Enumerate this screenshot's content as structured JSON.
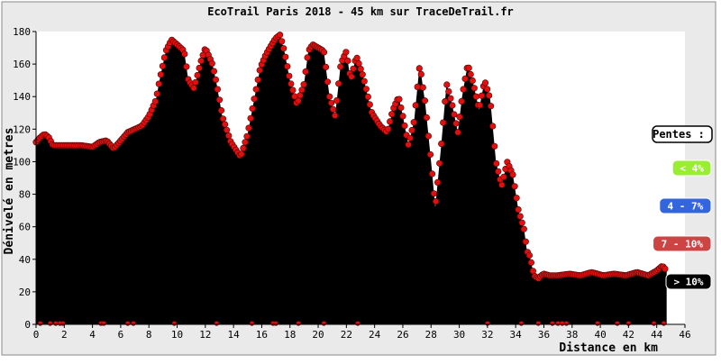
{
  "chart_data": {
    "type": "area",
    "title": "EcoTrail Paris 2018 - 45 km sur TraceDeTrail.fr",
    "xlabel": "Distance en km",
    "ylabel": "Dénivelé en metres",
    "xlim": [
      0,
      46
    ],
    "ylim": [
      0,
      180
    ],
    "x_ticks": [
      "0",
      "2",
      "4",
      "6",
      "8",
      "10",
      "12",
      "14",
      "16",
      "18",
      "20",
      "22",
      "24",
      "26",
      "28",
      "30",
      "32",
      "34",
      "36",
      "38",
      "40",
      "42",
      "44",
      "46"
    ],
    "y_ticks": [
      "0",
      "20",
      "40",
      "60",
      "80",
      "100",
      "120",
      "140",
      "160",
      "180"
    ],
    "grid": false,
    "fill_color": "#000000",
    "point_color": "#e01010",
    "profile": {
      "x": [
        0,
        0.3,
        0.6,
        0.9,
        1.2,
        1.8,
        2.5,
        3.2,
        4.0,
        4.5,
        5.0,
        5.5,
        6.0,
        6.5,
        7.0,
        7.5,
        8.0,
        8.5,
        8.8,
        9.2,
        9.6,
        10.0,
        10.5,
        10.8,
        11.2,
        11.7,
        12.0,
        12.5,
        12.8,
        13.2,
        13.8,
        14.5,
        15.0,
        15.5,
        15.9,
        16.3,
        16.7,
        17.0,
        17.3,
        17.6,
        18.0,
        18.5,
        19.0,
        19.3,
        19.6,
        20.0,
        20.4,
        20.8,
        21.2,
        21.6,
        22.0,
        22.3,
        22.7,
        23.2,
        23.8,
        24.4,
        24.9,
        25.3,
        25.7,
        26.0,
        26.4,
        26.8,
        27.2,
        27.6,
        28.0,
        28.3,
        28.7,
        29.1,
        29.5,
        29.9,
        30.2,
        30.6,
        31.0,
        31.4,
        31.8,
        32.2,
        32.6,
        33.0,
        33.4,
        33.8,
        34.2,
        34.6,
        34.8,
        35.0,
        35.3,
        35.6,
        35.8,
        36.0,
        36.4,
        37.0,
        37.8,
        38.6,
        39.4,
        40.2,
        41.0,
        41.8,
        42.6,
        43.4,
        44.0,
        44.4,
        44.7
      ],
      "y": [
        112,
        115,
        117,
        115,
        110,
        110,
        110,
        110,
        109,
        112,
        113,
        108,
        113,
        118,
        120,
        122,
        128,
        138,
        152,
        168,
        175,
        172,
        168,
        150,
        145,
        162,
        170,
        160,
        148,
        128,
        112,
        103,
        117,
        140,
        158,
        166,
        172,
        176,
        178,
        168,
        150,
        135,
        148,
        168,
        172,
        170,
        168,
        140,
        128,
        160,
        168,
        150,
        165,
        152,
        130,
        122,
        118,
        132,
        140,
        128,
        110,
        125,
        160,
        135,
        100,
        72,
        108,
        148,
        135,
        118,
        140,
        160,
        148,
        132,
        150,
        138,
        100,
        85,
        100,
        92,
        70,
        58,
        45,
        42,
        30,
        28,
        30,
        31,
        30,
        30,
        31,
        30,
        32,
        30,
        31,
        30,
        32,
        30,
        33,
        36,
        33
      ]
    },
    "grade_markers": [
      {
        "x": 0.3,
        "y": 58,
        "c": "#99ee33"
      },
      {
        "x": 1.0,
        "y": 108,
        "c": "#99ee33"
      },
      {
        "x": 1.4,
        "y": 55,
        "c": "#99ee33"
      },
      {
        "x": 1.9,
        "y": 108,
        "c": "#99ee33"
      },
      {
        "x": 1.7,
        "y": 55,
        "c": "#99ee33"
      },
      {
        "x": 4.6,
        "y": 107,
        "c": "#99ee33"
      },
      {
        "x": 4.8,
        "y": 107,
        "c": "#99ee33"
      },
      {
        "x": 6.5,
        "y": 120,
        "c": "#99ee33"
      },
      {
        "x": 6.9,
        "y": 120,
        "c": "#dd5555"
      },
      {
        "x": 9.8,
        "y": 85,
        "c": "#99ee33"
      },
      {
        "x": 12.8,
        "y": 53,
        "c": "#3366cc"
      },
      {
        "x": 15.3,
        "y": 87,
        "c": "#99ee33"
      },
      {
        "x": 16.8,
        "y": 67,
        "c": "#3366cc"
      },
      {
        "x": 17.0,
        "y": 62,
        "c": "#dd5555"
      },
      {
        "x": 18.6,
        "y": 86,
        "c": "#99ee33"
      },
      {
        "x": 20.4,
        "y": 61,
        "c": "#99ee33"
      },
      {
        "x": 22.8,
        "y": 65,
        "c": "#99ee33"
      },
      {
        "x": 32.0,
        "y": 56,
        "c": "#3366cc"
      },
      {
        "x": 34.4,
        "y": 46,
        "c": "#dd5555"
      },
      {
        "x": 35.6,
        "y": 28,
        "c": "#dd5555"
      },
      {
        "x": 36.6,
        "y": 28,
        "c": "#99ee33"
      },
      {
        "x": 37.0,
        "y": 15,
        "c": "#99ee33"
      },
      {
        "x": 37.3,
        "y": 15,
        "c": "#99ee33"
      },
      {
        "x": 37.6,
        "y": 15,
        "c": "#99ee33"
      },
      {
        "x": 39.8,
        "y": 15,
        "c": "#99ee33"
      },
      {
        "x": 41.2,
        "y": 27,
        "c": "#dd5555"
      },
      {
        "x": 42.0,
        "y": 15,
        "c": "#99ee33"
      },
      {
        "x": 43.8,
        "y": 15,
        "c": "#3366cc"
      },
      {
        "x": 44.5,
        "y": 15,
        "c": "#99ee33"
      }
    ],
    "legend": {
      "title": "Pentes :",
      "items": [
        {
          "label": "< 4%",
          "color": "#99ee33",
          "text_color": "#ffffff"
        },
        {
          "label": "4 - 7%",
          "color": "#3366dd",
          "text_color": "#ffffff"
        },
        {
          "label": "7 - 10%",
          "color": "#cc4444",
          "text_color": "#ffffff"
        },
        {
          "label": "> 10%",
          "color": "#000000",
          "text_color": "#ffffff"
        }
      ],
      "placement": "right"
    }
  }
}
